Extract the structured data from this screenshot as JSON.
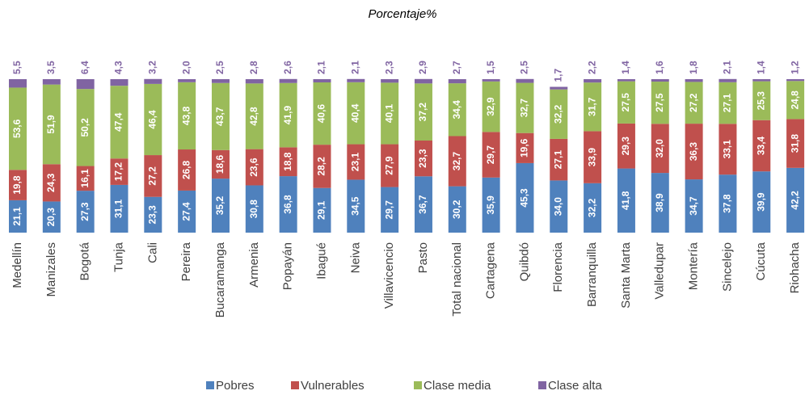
{
  "chart_data": {
    "type": "bar",
    "stacked": true,
    "title": "Porcentaje%",
    "categories": [
      "Medellín",
      "Manizales",
      "Bogotá",
      "Tunja",
      "Cali",
      "Pereira",
      "Bucaramanga",
      "Armenia",
      "Popayán",
      "Ibagué",
      "Neiva",
      "Villavicencio",
      "Pasto",
      "Total nacional",
      "Cartagena",
      "Quibdó",
      "Florencia",
      "Barranquilla",
      "Santa Marta",
      "Valledupar",
      "Montería",
      "Sincelejo",
      "Cúcuta",
      "Riohacha"
    ],
    "series": [
      {
        "name": "Pobres",
        "color": "#4f81bd",
        "values": [
          21.1,
          20.3,
          27.3,
          31.1,
          23.3,
          27.4,
          35.2,
          30.8,
          36.8,
          29.1,
          34.5,
          29.7,
          36.7,
          30.2,
          35.9,
          45.3,
          34.0,
          32.2,
          41.8,
          38.9,
          34.7,
          37.8,
          39.9,
          42.2
        ],
        "value_labels": [
          "21,1",
          "20,3",
          "27,3",
          "31,1",
          "23,3",
          "27,4",
          "35,2",
          "30,8",
          "36,8",
          "29,1",
          "34,5",
          "29,7",
          "36,7",
          "30,2",
          "35,9",
          "45,3",
          "34,0",
          "32,2",
          "41,8",
          "38,9",
          "34,7",
          "37,8",
          "39,9",
          "42,2"
        ]
      },
      {
        "name": "Vulnerables",
        "color": "#c0504d",
        "values": [
          19.8,
          24.3,
          16.1,
          17.2,
          27.2,
          26.8,
          18.6,
          23.6,
          18.8,
          28.2,
          23.1,
          27.9,
          23.3,
          32.7,
          29.7,
          19.6,
          27.1,
          33.9,
          29.3,
          32.0,
          36.3,
          33.1,
          33.4,
          31.8
        ],
        "value_labels": [
          "19,8",
          "24,3",
          "16,1",
          "17,2",
          "27,2",
          "26,8",
          "18,6",
          "23,6",
          "18,8",
          "28,2",
          "23,1",
          "27,9",
          "23,3",
          "32,7",
          "29,7",
          "19,6",
          "27,1",
          "33,9",
          "29,3",
          "32,0",
          "36,3",
          "33,1",
          "33,4",
          "31,8"
        ]
      },
      {
        "name": "Clase media",
        "color": "#9bbb59",
        "values": [
          53.6,
          51.9,
          50.2,
          47.4,
          46.4,
          43.8,
          43.7,
          42.8,
          41.9,
          40.6,
          40.4,
          40.1,
          37.2,
          34.4,
          32.9,
          32.7,
          32.2,
          31.7,
          27.5,
          27.5,
          27.2,
          27.1,
          25.3,
          24.8
        ],
        "value_labels": [
          "53,6",
          "51,9",
          "50,2",
          "47,4",
          "46,4",
          "43,8",
          "43,7",
          "42,8",
          "41,9",
          "40,6",
          "40,4",
          "40,1",
          "37,2",
          "34,4",
          "32,9",
          "32,7",
          "32,2",
          "31,7",
          "27,5",
          "27,5",
          "27,2",
          "27,1",
          "25,3",
          "24,8"
        ]
      },
      {
        "name": "Clase alta",
        "color": "#8064a2",
        "values": [
          5.5,
          3.5,
          6.4,
          4.3,
          3.2,
          2.0,
          2.5,
          2.8,
          2.6,
          2.1,
          2.1,
          2.3,
          2.9,
          2.7,
          1.5,
          2.5,
          1.7,
          2.2,
          1.4,
          1.6,
          1.8,
          2.1,
          1.4,
          1.2
        ],
        "value_labels": [
          "5,5",
          "3,5",
          "6,4",
          "4,3",
          "3,2",
          "2,0",
          "2,5",
          "2,8",
          "2,6",
          "2,1",
          "2,1",
          "2,3",
          "2,9",
          "2,7",
          "1,5",
          "2,5",
          "1,7",
          "2,2",
          "1,4",
          "1,6",
          "1,8",
          "2,1",
          "1,4",
          "1,2"
        ]
      }
    ],
    "legend": "bottom"
  }
}
